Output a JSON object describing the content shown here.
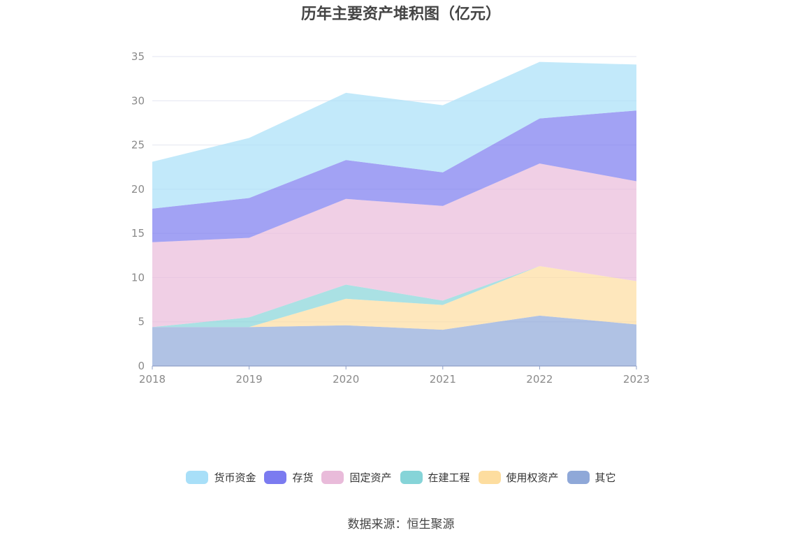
{
  "chart_data": {
    "type": "area",
    "stacked": true,
    "title": "历年主要资产堆积图（亿元）",
    "x": [
      "2018",
      "2019",
      "2020",
      "2021",
      "2022",
      "2023"
    ],
    "yticks": [
      "0",
      "5",
      "10",
      "15",
      "20",
      "25",
      "30",
      "35"
    ],
    "ylim": [
      0,
      35
    ],
    "grid": true,
    "legend_position": "bottom",
    "series": [
      {
        "name": "其它",
        "color": "#8fa8d8",
        "values": [
          4.4,
          4.4,
          4.6,
          4.1,
          5.7,
          4.7
        ]
      },
      {
        "name": "使用权资产",
        "color": "#fddd9f",
        "values": [
          0.0,
          0.0,
          3.0,
          2.8,
          5.6,
          4.9
        ]
      },
      {
        "name": "在建工程",
        "color": "#86d4d8",
        "values": [
          0.0,
          1.1,
          1.6,
          0.5,
          0.0,
          0.0
        ]
      },
      {
        "name": "固定资产",
        "color": "#e9bbda",
        "values": [
          9.6,
          9.0,
          9.7,
          10.7,
          11.6,
          11.3
        ]
      },
      {
        "name": "存货",
        "color": "#7b7bf0",
        "values": [
          3.8,
          4.5,
          4.4,
          3.8,
          5.1,
          8.0
        ]
      },
      {
        "name": "货币资金",
        "color": "#a8dff8",
        "values": [
          5.3,
          6.8,
          7.6,
          7.6,
          6.4,
          5.2
        ]
      }
    ],
    "legend_order": [
      "货币资金",
      "存货",
      "固定资产",
      "在建工程",
      "使用权资产",
      "其它"
    ]
  },
  "source": "数据来源：恒生聚源"
}
